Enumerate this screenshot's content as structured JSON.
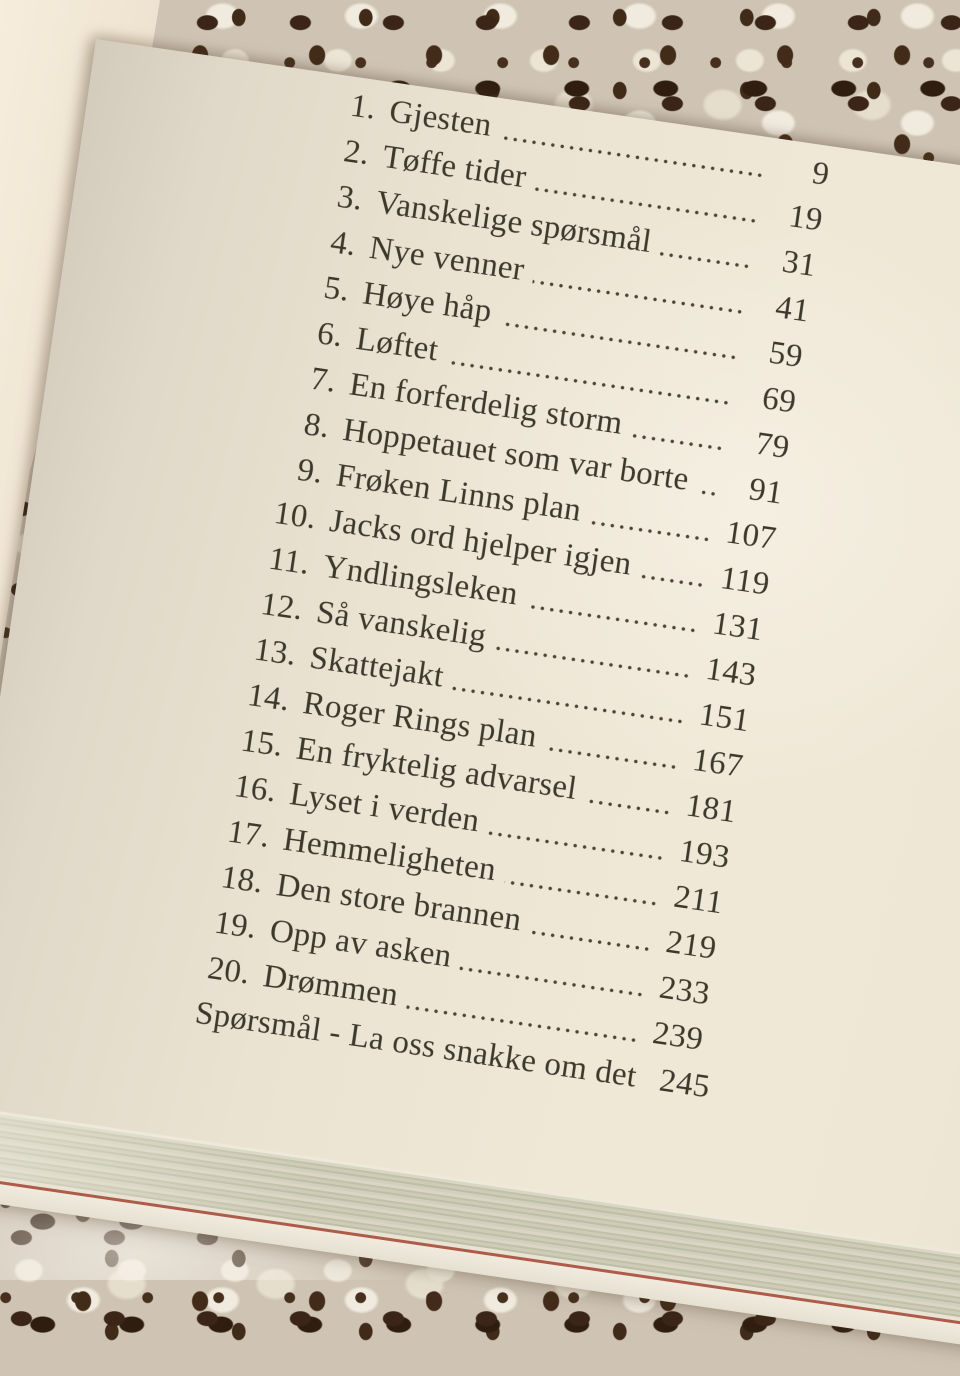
{
  "toc": {
    "entries": [
      {
        "num": "1.",
        "title": "Gjesten",
        "page": "9"
      },
      {
        "num": "2.",
        "title": "Tøffe tider",
        "page": "19"
      },
      {
        "num": "3.",
        "title": "Vanskelige spørsmål",
        "page": "31"
      },
      {
        "num": "4.",
        "title": "Nye venner",
        "page": "41"
      },
      {
        "num": "5.",
        "title": "Høye håp",
        "page": "59"
      },
      {
        "num": "6.",
        "title": "Løftet",
        "page": "69"
      },
      {
        "num": "7.",
        "title": "En forferdelig storm",
        "page": "79"
      },
      {
        "num": "8.",
        "title": "Hoppetauet som var borte",
        "page": "91"
      },
      {
        "num": "9.",
        "title": "Frøken Linns plan",
        "page": "107"
      },
      {
        "num": "10.",
        "title": "Jacks ord hjelper igjen",
        "page": "119"
      },
      {
        "num": "11.",
        "title": "Yndlingsleken",
        "page": "131"
      },
      {
        "num": "12.",
        "title": "Så vanskelig",
        "page": "143"
      },
      {
        "num": "13.",
        "title": "Skattejakt",
        "page": "151"
      },
      {
        "num": "14.",
        "title": "Roger Rings plan",
        "page": "167"
      },
      {
        "num": "15.",
        "title": "En fryktelig advarsel",
        "page": "181"
      },
      {
        "num": "16.",
        "title": "Lyset i verden",
        "page": "193"
      },
      {
        "num": "17.",
        "title": "Hemmeligheten",
        "page": "211"
      },
      {
        "num": "18.",
        "title": "Den store brannen",
        "page": "219"
      },
      {
        "num": "19.",
        "title": "Opp av asken",
        "page": "233"
      },
      {
        "num": "20.",
        "title": "Drømmen",
        "page": "239"
      },
      {
        "num": "",
        "title": "Spørsmål - La oss snakke om det",
        "page": "245"
      }
    ]
  },
  "colors": {
    "paper": "#ece4d3",
    "ink": "#3e372c",
    "page_edge_red_line": "#ae5c49",
    "page_edge_stripes": "#c6c8b2",
    "lace_thread": "#ece5d6",
    "lace_hole": "#3a2516"
  }
}
